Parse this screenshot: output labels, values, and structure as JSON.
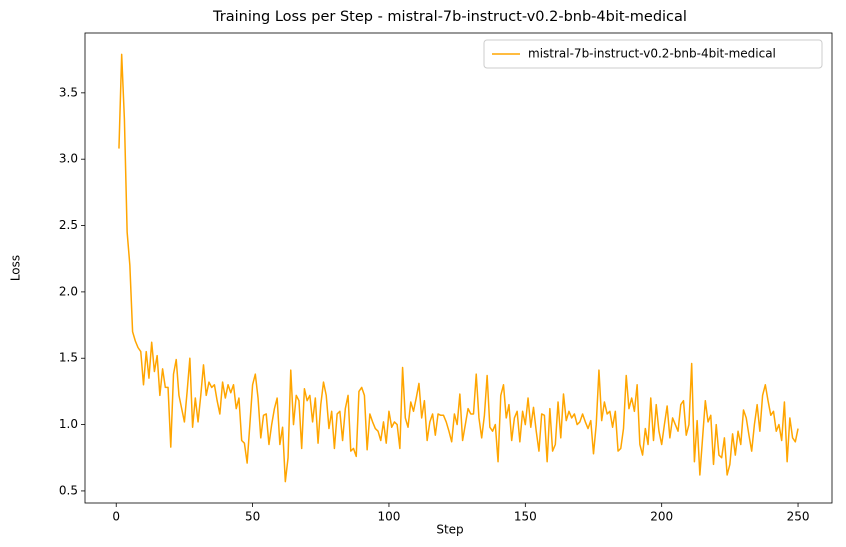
{
  "chart_data": {
    "type": "line",
    "title": "Training Loss per Step - mistral-7b-instruct-v0.2-bnb-4bit-medical",
    "x_label": "Step",
    "y_label": "Loss",
    "legend": "upper right",
    "xlim": [
      -11.45,
      262.45
    ],
    "xticks": [
      0,
      50,
      100,
      150,
      200,
      250
    ],
    "ylim": [
      0.409,
      3.951
    ],
    "yticks": [
      0.5,
      {
        "value": 1,
        "label": "1.0"
      },
      1.5,
      {
        "value": 2,
        "label": "2.0"
      },
      2.5,
      {
        "value": 3,
        "label": "3.0"
      },
      3.5
    ],
    "x": [
      1,
      2,
      3,
      4,
      5,
      6,
      7,
      8,
      9,
      10,
      11,
      12,
      13,
      14,
      15,
      16,
      17,
      18,
      19,
      20,
      21,
      22,
      23,
      24,
      25,
      26,
      27,
      28,
      29,
      30,
      31,
      32,
      33,
      34,
      35,
      36,
      37,
      38,
      39,
      40,
      41,
      42,
      43,
      44,
      45,
      46,
      47,
      48,
      49,
      50,
      51,
      52,
      53,
      54,
      55,
      56,
      57,
      58,
      59,
      60,
      61,
      62,
      63,
      64,
      65,
      66,
      67,
      68,
      69,
      70,
      71,
      72,
      73,
      74,
      75,
      76,
      77,
      78,
      79,
      80,
      81,
      82,
      83,
      84,
      85,
      86,
      87,
      88,
      89,
      90,
      91,
      92,
      93,
      94,
      95,
      96,
      97,
      98,
      99,
      100,
      101,
      102,
      103,
      104,
      105,
      106,
      107,
      108,
      109,
      110,
      111,
      112,
      113,
      114,
      115,
      116,
      117,
      118,
      119,
      120,
      121,
      122,
      123,
      124,
      125,
      126,
      127,
      128,
      129,
      130,
      131,
      132,
      133,
      134,
      135,
      136,
      137,
      138,
      139,
      140,
      141,
      142,
      143,
      144,
      145,
      146,
      147,
      148,
      149,
      150,
      151,
      152,
      153,
      154,
      155,
      156,
      157,
      158,
      159,
      160,
      161,
      162,
      163,
      164,
      165,
      166,
      167,
      168,
      169,
      170,
      171,
      172,
      173,
      174,
      175,
      176,
      177,
      178,
      179,
      180,
      181,
      182,
      183,
      184,
      185,
      186,
      187,
      188,
      189,
      190,
      191,
      192,
      193,
      194,
      195,
      196,
      197,
      198,
      199,
      200,
      201,
      202,
      203,
      204,
      205,
      206,
      207,
      208,
      209,
      210,
      211,
      212,
      213,
      214,
      215,
      216,
      217,
      218,
      219,
      220,
      221,
      222,
      223,
      224,
      225,
      226,
      227,
      228,
      229,
      230,
      231,
      232,
      233,
      234,
      235,
      236,
      237,
      238,
      239,
      240,
      241,
      242,
      243,
      244,
      245,
      246,
      247,
      248,
      249,
      250
    ],
    "series": [
      {
        "name": "mistral-7b-instruct-v0.2-bnb-4bit-medical",
        "color": "#ffa500",
        "values": [
          3.08,
          3.79,
          3.3,
          2.45,
          2.2,
          1.7,
          1.63,
          1.58,
          1.55,
          1.3,
          1.55,
          1.35,
          1.62,
          1.4,
          1.52,
          1.22,
          1.42,
          1.28,
          1.28,
          0.83,
          1.38,
          1.49,
          1.22,
          1.12,
          1.02,
          1.25,
          1.5,
          0.98,
          1.2,
          1.02,
          1.22,
          1.45,
          1.22,
          1.32,
          1.28,
          1.3,
          1.18,
          1.08,
          1.32,
          1.2,
          1.3,
          1.24,
          1.3,
          1.12,
          1.2,
          0.88,
          0.86,
          0.71,
          1.0,
          1.3,
          1.38,
          1.2,
          0.9,
          1.07,
          1.08,
          0.85,
          1.0,
          1.12,
          1.2,
          0.85,
          0.98,
          0.57,
          0.75,
          1.41,
          1.0,
          1.22,
          1.18,
          0.82,
          1.27,
          1.18,
          1.22,
          1.02,
          1.2,
          0.86,
          1.15,
          1.32,
          1.22,
          0.97,
          1.1,
          0.82,
          1.08,
          1.1,
          0.88,
          1.12,
          1.22,
          0.8,
          0.82,
          0.76,
          1.25,
          1.28,
          1.22,
          0.81,
          1.08,
          1.02,
          0.97,
          0.95,
          0.88,
          1.02,
          0.86,
          1.1,
          0.98,
          1.02,
          1.0,
          0.82,
          1.43,
          1.05,
          0.98,
          1.17,
          1.1,
          1.2,
          1.31,
          1.05,
          1.18,
          0.88,
          1.02,
          1.08,
          0.92,
          1.08,
          1.07,
          1.07,
          1.02,
          0.95,
          0.87,
          1.08,
          1.0,
          1.23,
          0.88,
          1.0,
          1.12,
          1.08,
          1.08,
          1.38,
          1.05,
          0.9,
          1.07,
          1.37,
          0.98,
          0.95,
          1.0,
          0.72,
          1.22,
          1.3,
          1.05,
          1.15,
          0.88,
          1.05,
          1.1,
          0.87,
          1.1,
          1.0,
          1.2,
          0.98,
          1.13,
          0.95,
          0.8,
          1.08,
          1.07,
          0.72,
          1.12,
          0.8,
          0.85,
          1.17,
          0.9,
          1.23,
          1.03,
          1.1,
          1.05,
          1.08,
          1.0,
          1.02,
          1.08,
          1.02,
          0.97,
          1.03,
          0.78,
          1.0,
          1.41,
          1.03,
          1.17,
          1.08,
          1.1,
          0.98,
          1.1,
          0.8,
          0.82,
          0.97,
          1.37,
          1.12,
          1.2,
          1.1,
          1.3,
          0.85,
          0.77,
          0.97,
          0.85,
          1.2,
          0.88,
          1.15,
          0.95,
          0.85,
          1.0,
          1.14,
          0.9,
          1.05,
          1.0,
          0.95,
          1.15,
          1.18,
          0.92,
          1.0,
          1.46,
          0.72,
          1.03,
          0.62,
          0.9,
          1.18,
          1.02,
          1.07,
          0.7,
          1.0,
          0.77,
          0.75,
          0.9,
          0.62,
          0.7,
          0.93,
          0.77,
          0.95,
          0.85,
          1.11,
          1.05,
          0.92,
          0.8,
          1.0,
          1.15,
          0.95,
          1.22,
          1.3,
          1.18,
          1.07,
          1.1,
          0.95,
          1.0,
          0.88,
          1.17,
          0.72,
          1.05,
          0.9,
          0.87,
          0.97
        ]
      }
    ]
  }
}
